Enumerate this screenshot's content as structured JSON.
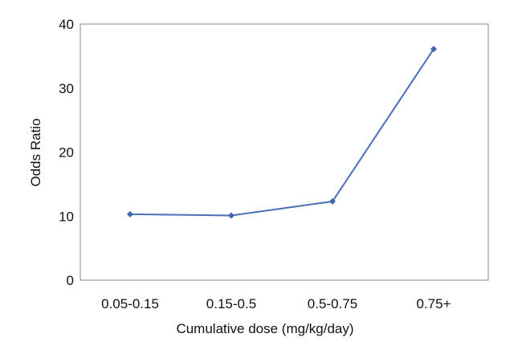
{
  "chart_data": {
    "type": "line",
    "title": "",
    "xlabel": "Cumulative dose (mg/kg/day)",
    "ylabel": "Odds Ratio",
    "categories": [
      "0.05-0.15",
      "0.15-0.5",
      "0.5-0.75",
      "0.75+"
    ],
    "series": [
      {
        "values": [
          10.3,
          10.1,
          12.3,
          36.1
        ]
      }
    ],
    "ylim": [
      0,
      40
    ],
    "yticks": [
      0,
      10,
      20,
      30,
      40
    ],
    "grid": false,
    "legend": "none",
    "colors": {
      "line": "#4a6fb5",
      "marker": "#3d65b0",
      "frame": "#888888"
    }
  }
}
